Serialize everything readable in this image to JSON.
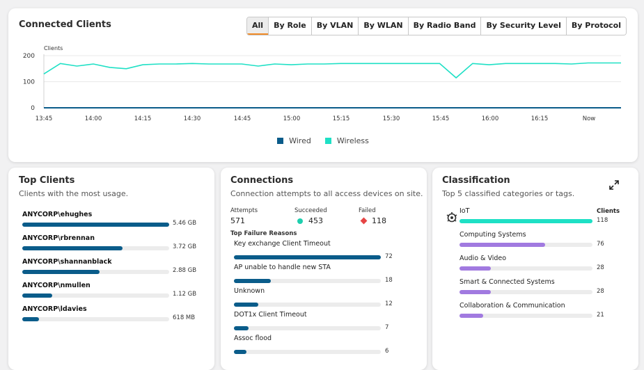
{
  "connected_clients": {
    "title": "Connected Clients",
    "tabs": [
      {
        "label": "All",
        "active": true
      },
      {
        "label": "By Role"
      },
      {
        "label": "By VLAN"
      },
      {
        "label": "By WLAN"
      },
      {
        "label": "By Radio Band"
      },
      {
        "label": "By Security Level"
      },
      {
        "label": "By Protocol"
      }
    ],
    "legend": {
      "wired": "Wired",
      "wireless": "Wireless"
    }
  },
  "chart_data": {
    "type": "line",
    "ylabel": "Clients",
    "ylim": [
      0,
      200
    ],
    "yticks": [
      0,
      100,
      200
    ],
    "x_ticks": [
      "13:45",
      "14:00",
      "14:15",
      "14:30",
      "14:45",
      "15:00",
      "15:15",
      "15:30",
      "15:45",
      "16:00",
      "16:15",
      "Now"
    ],
    "grid": true,
    "legend_position": "bottom",
    "series": [
      {
        "name": "Wireless",
        "color": "#1ee0c5",
        "x": [
          "13:45",
          "13:50",
          "13:55",
          "14:00",
          "14:05",
          "14:10",
          "14:15",
          "14:20",
          "14:25",
          "14:30",
          "14:35",
          "14:40",
          "14:45",
          "14:50",
          "14:55",
          "15:00",
          "15:05",
          "15:10",
          "15:15",
          "15:20",
          "15:25",
          "15:30",
          "15:35",
          "15:40",
          "15:45",
          "15:50",
          "15:55",
          "16:00",
          "16:05",
          "16:10",
          "16:15",
          "16:20",
          "16:25",
          "16:30",
          "16:35",
          "16:40"
        ],
        "values": [
          130,
          170,
          160,
          168,
          155,
          150,
          165,
          168,
          168,
          170,
          168,
          168,
          168,
          160,
          168,
          165,
          168,
          168,
          170,
          170,
          170,
          170,
          170,
          170,
          170,
          115,
          170,
          165,
          170,
          170,
          170,
          170,
          168,
          172,
          172,
          172
        ]
      },
      {
        "name": "Wired",
        "color": "#0a5c8a",
        "x": [
          "13:45",
          "16:40"
        ],
        "values": [
          0,
          0
        ]
      }
    ]
  },
  "top_clients": {
    "title": "Top Clients",
    "subtitle": "Clients with the most usage.",
    "color": "#0a5c8a",
    "max_gb": 5.46,
    "items": [
      {
        "name": "ANYCORP\\ehughes",
        "value": "5.46 GB",
        "gb": 5.46
      },
      {
        "name": "ANYCORP\\rbrennan",
        "value": "3.72 GB",
        "gb": 3.72
      },
      {
        "name": "ANYCORP\\shannanblack",
        "value": "2.88 GB",
        "gb": 2.88
      },
      {
        "name": "ANYCORP\\nmullen",
        "value": "1.12 GB",
        "gb": 1.12
      },
      {
        "name": "ANYCORP\\ldavies",
        "value": "618 MB",
        "gb": 0.618
      }
    ]
  },
  "connections": {
    "title": "Connections",
    "subtitle": "Connection attempts to all access devices on site.",
    "attempts_label": "Attempts",
    "attempts_value": "571",
    "succeeded_label": "Succeeded",
    "succeeded_value": "453",
    "failed_label": "Failed",
    "failed_value": "118",
    "failure_title": "Top Failure Reasons",
    "max": 72,
    "reasons": [
      {
        "label": "Key exchange Client Timeout",
        "value": "72",
        "n": 72
      },
      {
        "label": "AP unable to handle new STA",
        "value": "18",
        "n": 18
      },
      {
        "label": "Unknown",
        "value": "12",
        "n": 12
      },
      {
        "label": "DOT1x Client Timeout",
        "value": "7",
        "n": 7
      },
      {
        "label": "Assoc flood",
        "value": "6",
        "n": 6
      }
    ]
  },
  "classification": {
    "title": "Classification",
    "subtitle": "Top 5 classified categories or tags.",
    "clients_header": "Clients",
    "max": 118,
    "items": [
      {
        "label": "IoT",
        "value": "118",
        "n": 118,
        "color": "#1ee0c5"
      },
      {
        "label": "Computing Systems",
        "value": "76",
        "n": 76,
        "color": "#a17ae0"
      },
      {
        "label": "Audio & Video",
        "value": "28",
        "n": 28,
        "color": "#a17ae0"
      },
      {
        "label": "Smart & Connected Systems",
        "value": "28",
        "n": 28,
        "color": "#a17ae0"
      },
      {
        "label": "Collaboration & Communication",
        "value": "21",
        "n": 21,
        "color": "#a17ae0"
      }
    ]
  }
}
